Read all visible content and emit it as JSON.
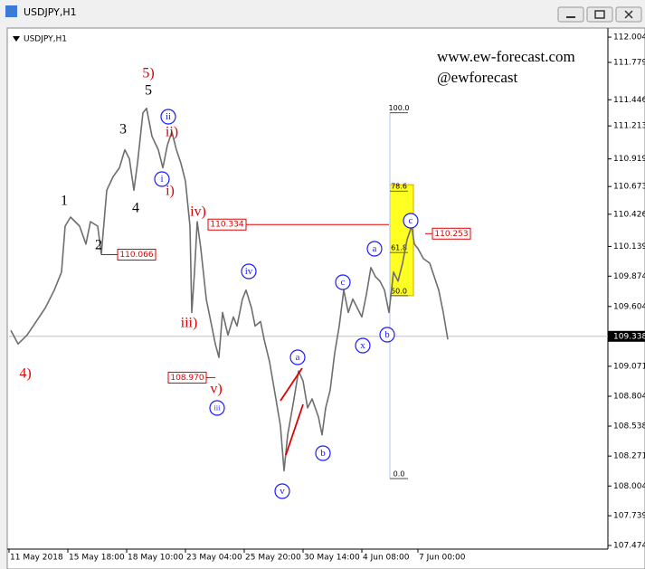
{
  "window": {
    "title": "USDJPY,H1"
  },
  "chart_data": {
    "type": "line",
    "title": "USDJPY,H1",
    "color": "#6e6e6e",
    "x": [
      2,
      10,
      20,
      30,
      40,
      50,
      58,
      62,
      68,
      78,
      85,
      90,
      98,
      102,
      108,
      115,
      122,
      128,
      133,
      138,
      142,
      148,
      152,
      158,
      165,
      170,
      175,
      180,
      185,
      190,
      195,
      200,
      202,
      205,
      208,
      212,
      218,
      222,
      228,
      232,
      236,
      242,
      248,
      252,
      258,
      262,
      268,
      272,
      278,
      282,
      288,
      295,
      300,
      304,
      308,
      315,
      320,
      325,
      330,
      335,
      342,
      346,
      350,
      355,
      360,
      365,
      370,
      375,
      380,
      385,
      390,
      395,
      400,
      405,
      410,
      415,
      420,
      425,
      430,
      435,
      440,
      445,
      448,
      452,
      458,
      465,
      470,
      475,
      480,
      485
    ],
    "values": [
      109.39,
      109.27,
      109.35,
      109.47,
      109.59,
      109.75,
      109.91,
      110.32,
      110.4,
      110.32,
      110.16,
      110.36,
      110.32,
      110.07,
      110.64,
      110.76,
      110.84,
      111.0,
      110.92,
      110.64,
      110.88,
      111.33,
      111.37,
      111.12,
      111.0,
      110.84,
      111.04,
      111.16,
      111.0,
      110.88,
      110.72,
      110.32,
      109.55,
      109.91,
      110.36,
      110.12,
      109.67,
      109.51,
      109.27,
      109.15,
      109.55,
      109.35,
      109.51,
      109.43,
      109.67,
      109.75,
      109.59,
      109.43,
      109.47,
      109.31,
      109.11,
      108.78,
      108.54,
      108.14,
      108.46,
      108.78,
      109.03,
      108.94,
      108.7,
      108.78,
      108.62,
      108.46,
      108.7,
      108.86,
      109.19,
      109.43,
      109.75,
      109.55,
      109.67,
      109.59,
      109.51,
      109.71,
      109.95,
      109.87,
      109.83,
      109.75,
      109.55,
      109.91,
      109.83,
      109.99,
      110.2,
      110.32,
      110.16,
      110.12,
      110.03,
      109.99,
      109.87,
      109.75,
      109.55,
      109.31
    ],
    "xlim": [
      0,
      662
    ],
    "xticks": [
      {
        "value": 0,
        "label": "11 May 2018"
      },
      {
        "value": 65,
        "label": "15 May 18:00"
      },
      {
        "value": 130,
        "label": "18 May 10:00"
      },
      {
        "value": 195,
        "label": "23 May 04:00"
      },
      {
        "value": 260,
        "label": "25 May 20:00"
      },
      {
        "value": 325,
        "label": "30 May 14:00"
      },
      {
        "value": 390,
        "label": "4 Jun 08:00"
      },
      {
        "value": 452,
        "label": "7 Jun 00:00"
      }
    ],
    "ylim": [
      107.458,
      112.069
    ],
    "yticks": [
      112.004,
      111.779,
      111.446,
      111.213,
      110.919,
      110.673,
      110.426,
      110.139,
      109.874,
      109.604,
      109.071,
      108.804,
      108.538,
      108.271,
      108.004,
      107.739,
      107.474
    ],
    "current_price": 109.338,
    "price_labels": [
      110.066,
      110.334,
      110.253,
      {
        "value": 108.97,
        "label": "108.970"
      }
    ],
    "fibonacci": {
      "high": 111.33,
      "low": 108.07,
      "levels": [
        {
          "value": 100,
          "label": "100.0"
        },
        {
          "value": 78.6,
          "label": "78.6"
        },
        {
          "value": 61.8,
          "label": "61.8"
        },
        {
          "value": 50,
          "label": "50.0"
        },
        {
          "value": 0,
          "label": "0.0"
        }
      ]
    },
    "wave_labels": [
      {
        "text": "5",
        "color": "black"
      },
      {
        "text": "3",
        "color": "black"
      },
      {
        "text": "1",
        "color": "black"
      },
      {
        "text": "4",
        "color": "black"
      },
      {
        "text": "2",
        "color": "black"
      },
      {
        "text": "5)",
        "color": "red"
      },
      {
        "text": "ii)",
        "color": "red"
      },
      {
        "text": "i)",
        "color": "red"
      },
      {
        "text": "iv)",
        "color": "red"
      },
      {
        "text": "iii)",
        "color": "red"
      },
      {
        "text": "v)",
        "color": "red"
      },
      {
        "text": "4)",
        "color": "red"
      },
      {
        "text": "ii",
        "color": "blue"
      },
      {
        "text": "i",
        "color": "blue"
      },
      {
        "text": "iv",
        "color": "blue"
      },
      {
        "text": "iii",
        "color": "blue"
      },
      {
        "text": "v",
        "color": "blue"
      },
      {
        "text": "a",
        "color": "blue"
      },
      {
        "text": "b",
        "color": "blue"
      },
      {
        "text": "c",
        "color": "blue"
      },
      {
        "text": "x",
        "color": "blue"
      },
      {
        "text": "a",
        "color": "blue"
      },
      {
        "text": "b",
        "color": "blue"
      },
      {
        "text": "c",
        "color": "blue"
      }
    ],
    "watermark": [
      "www.ew-forecast.com",
      "@ewforecast"
    ]
  }
}
